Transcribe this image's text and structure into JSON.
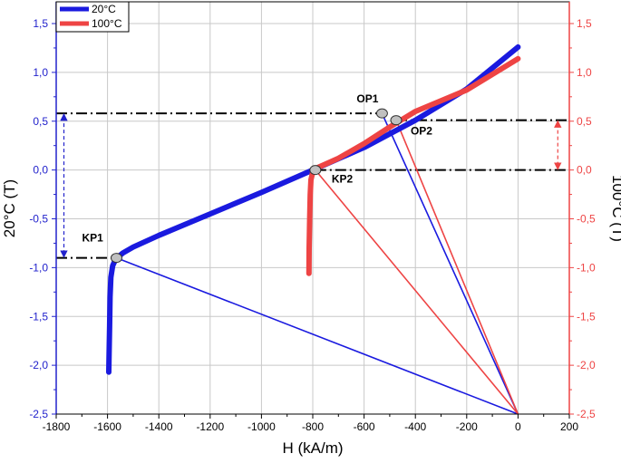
{
  "chart_data": {
    "type": "line",
    "xlabel": "H (kA/m)",
    "ylabel_left": "20°C (T)",
    "ylabel_right": "100°C (T)",
    "xlim": [
      -1800,
      200
    ],
    "ylim": [
      -2.5,
      1.7
    ],
    "x_ticks": [
      -1800,
      -1600,
      -1400,
      -1200,
      -1000,
      -800,
      -600,
      -400,
      -200,
      0,
      200
    ],
    "x_tick_labels": [
      "-1800",
      "-1600",
      "-1400",
      "-1200",
      "-1000",
      "-800",
      "-600",
      "-400",
      "-200",
      "0",
      "200"
    ],
    "y_ticks": [
      -2.5,
      -2.0,
      -1.5,
      -1.0,
      -0.5,
      0.0,
      0.5,
      1.0,
      1.5
    ],
    "y_tick_labels": [
      "-2,5",
      "-2,0",
      "-1,5",
      "-1,0",
      "-0,5",
      "0,0",
      "0,5",
      "1,0",
      "1,5"
    ],
    "grid": true,
    "legend_position": "top-left",
    "colors": {
      "series_20": "#1a1adf",
      "series_100": "#ee4444",
      "left_axis": "#2222cc",
      "right_axis": "#ee4444"
    },
    "series": [
      {
        "name": "20°C",
        "color": "#1a1adf",
        "points": [
          [
            -1595,
            -2.07
          ],
          [
            -1594,
            -1.9
          ],
          [
            -1592,
            -1.6
          ],
          [
            -1590,
            -1.3
          ],
          [
            -1587,
            -1.1
          ],
          [
            -1580,
            -0.98
          ],
          [
            -1568,
            -0.91
          ],
          [
            -1540,
            -0.85
          ],
          [
            -1500,
            -0.79
          ],
          [
            -1400,
            -0.67
          ],
          [
            -1200,
            -0.45
          ],
          [
            -1000,
            -0.23
          ],
          [
            -800,
            0.0
          ],
          [
            -600,
            0.23
          ],
          [
            -400,
            0.51
          ],
          [
            -200,
            0.83
          ],
          [
            0,
            1.26
          ]
        ]
      },
      {
        "name": "100°C",
        "color": "#ee4444",
        "points": [
          [
            -815,
            -1.06
          ],
          [
            -814,
            -0.8
          ],
          [
            -812,
            -0.5
          ],
          [
            -810,
            -0.25
          ],
          [
            -807,
            -0.1
          ],
          [
            -800,
            -0.02
          ],
          [
            -785,
            0.02
          ],
          [
            -700,
            0.12
          ],
          [
            -600,
            0.27
          ],
          [
            -500,
            0.44
          ],
          [
            -400,
            0.6
          ],
          [
            -200,
            0.82
          ],
          [
            0,
            1.14
          ]
        ]
      }
    ],
    "points": [
      {
        "label": "KP1",
        "x": -1565,
        "y": -0.9,
        "series": "20°C"
      },
      {
        "label": "OP1",
        "x": -530,
        "y": 0.58,
        "series": "20°C"
      },
      {
        "label": "KP2",
        "x": -790,
        "y": 0.0,
        "series": "100°C"
      },
      {
        "label": "OP2",
        "x": -475,
        "y": 0.51,
        "series": "100°C"
      }
    ],
    "load_lines": [
      {
        "from": [
          -1565,
          -0.9
        ],
        "to": [
          0,
          -2.5
        ],
        "series": "20°C"
      },
      {
        "from": [
          -530,
          0.58
        ],
        "to": [
          0,
          -2.5
        ],
        "series": "20°C"
      },
      {
        "from": [
          -790,
          0.0
        ],
        "to": [
          0,
          -2.5
        ],
        "series": "100°C"
      },
      {
        "from": [
          -475,
          0.51
        ],
        "to": [
          0,
          -2.5
        ],
        "series": "100°C"
      }
    ],
    "reference_lines": [
      {
        "y": 0.58,
        "x_from": -1800,
        "x_to": -530
      },
      {
        "y": 0.51,
        "x_from": -475,
        "x_to": 200
      },
      {
        "y": 0.0,
        "x_from": -790,
        "x_to": 200
      },
      {
        "y": -0.9,
        "x_from": -1800,
        "x_to": -1565
      }
    ],
    "arrows": [
      {
        "x": -1770,
        "y_from": 0.58,
        "y_to": -0.9,
        "color": "#2222cc"
      },
      {
        "x": 155,
        "y_from": 0.51,
        "y_to": 0.0,
        "color": "#ee4444"
      }
    ]
  }
}
